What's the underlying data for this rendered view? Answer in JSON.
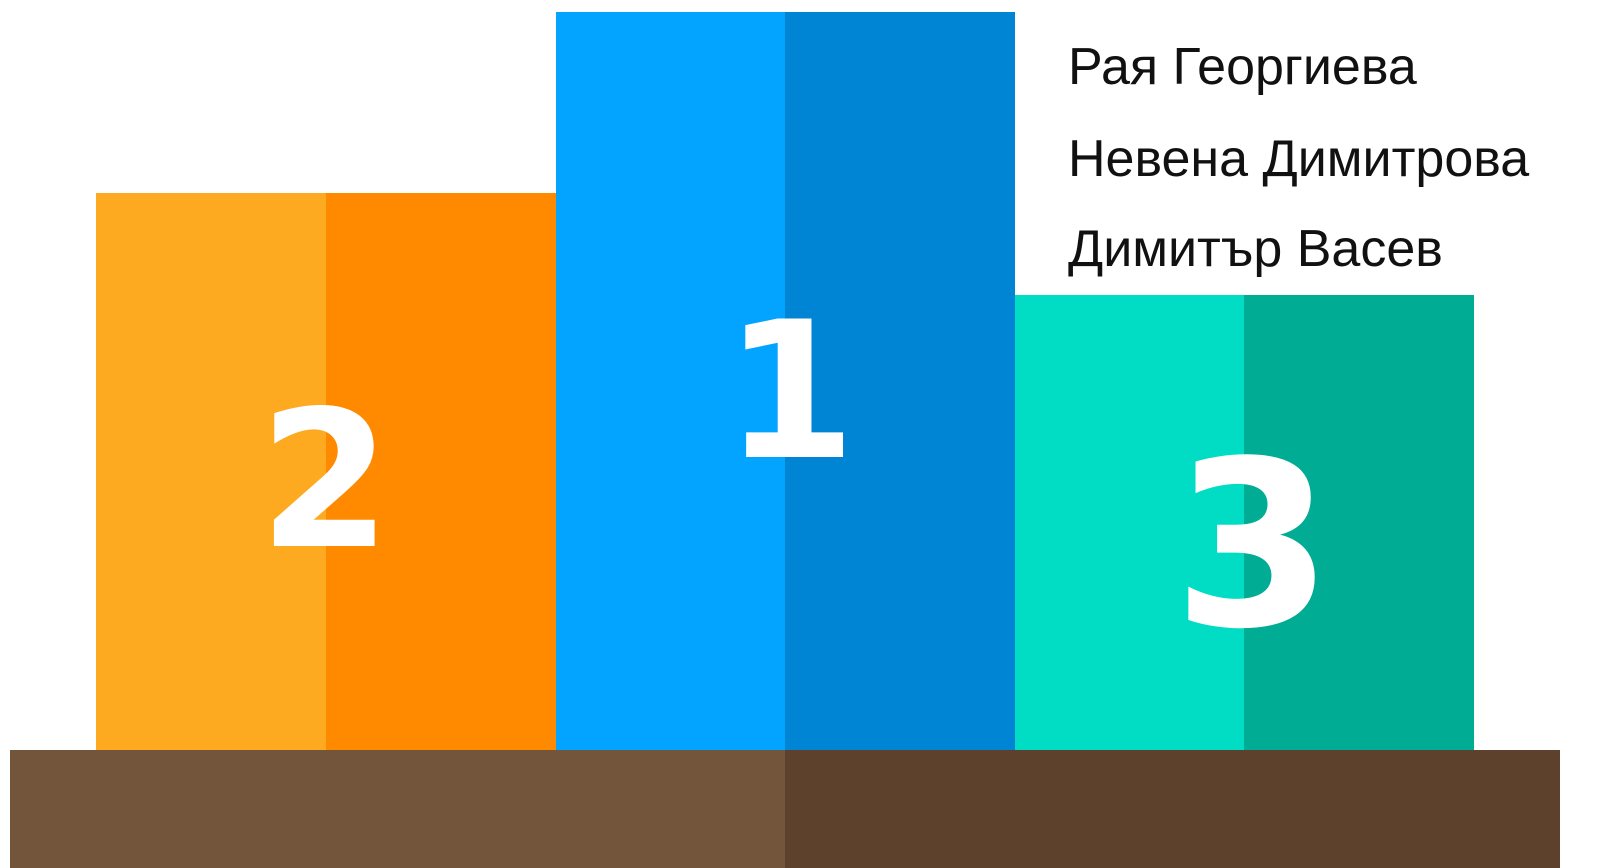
{
  "podium": [
    {
      "place": "2"
    },
    {
      "place": "1"
    },
    {
      "place": "3"
    }
  ],
  "names": [
    "Рая Георгиева",
    "Невена Димитрова",
    "Димитър Васев"
  ]
}
